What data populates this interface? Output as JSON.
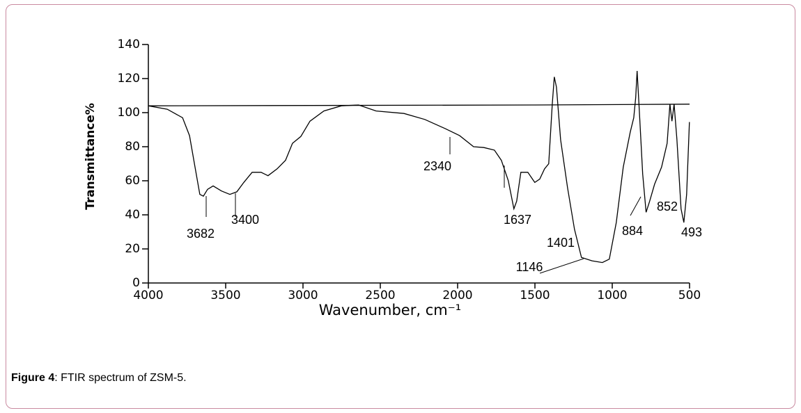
{
  "chart_data": {
    "type": "line",
    "xlabel": "Wavenumber, cm⁻¹",
    "ylabel": "Transmittance%",
    "xlim": [
      4000,
      500
    ],
    "xticks": [
      4000,
      3500,
      3000,
      2500,
      2000,
      1500,
      1000,
      500
    ],
    "ylim": [
      0,
      140
    ],
    "yticks": [
      0,
      20,
      40,
      60,
      80,
      100,
      120,
      140
    ],
    "series": [
      {
        "color": "#000000",
        "x": [
          4000,
          3878,
          3779,
          3734,
          3698,
          3667,
          3644,
          3617,
          3581,
          3527,
          3473,
          3428,
          3383,
          3329,
          3271,
          3226,
          3167,
          3113,
          3068,
          3014,
          2955,
          2865,
          2752,
          2640,
          2527,
          2347,
          2212,
          2077,
          1987,
          1897,
          1830,
          1762,
          1717,
          1672,
          1636,
          1618,
          1591,
          1546,
          1501,
          1469,
          1438,
          1411,
          1388,
          1375,
          1361,
          1334,
          1289,
          1244,
          1199,
          1131,
          1064,
          1019,
          974,
          929,
          884,
          861,
          848,
          839,
          825,
          803,
          781,
          758,
          726,
          681,
          645,
          627,
          614,
          600,
          582,
          555,
          537,
          519,
          501
        ],
        "values": [
          104,
          102,
          97,
          86.5,
          68,
          52,
          51,
          55,
          57,
          54,
          52,
          53.5,
          59,
          65,
          65,
          63,
          67,
          72,
          82,
          86,
          95,
          101,
          104,
          104.5,
          101,
          99.5,
          96,
          90.5,
          86.5,
          80,
          79.5,
          78,
          72,
          60,
          43.5,
          48,
          65,
          65,
          59,
          61,
          67,
          70,
          105,
          121,
          115,
          84,
          56,
          31.5,
          15,
          13,
          12,
          14,
          35.5,
          68,
          88.5,
          97,
          109,
          124.5,
          101,
          64,
          41.5,
          48,
          58,
          68,
          82,
          105,
          95,
          105,
          84.5,
          43.5,
          35.5,
          52,
          94.5
        ]
      },
      {
        "color": "#000000",
        "x": [
          4000,
          1500,
          500
        ],
        "values": [
          104,
          104.5,
          105
        ]
      }
    ],
    "annotations": [
      "3682",
      "3400",
      "2340",
      "1637",
      "1401",
      "1146",
      "884",
      "852",
      "493"
    ]
  },
  "caption": {
    "label": "Figure 4",
    "text": ": FTIR spectrum of ZSM-5."
  }
}
